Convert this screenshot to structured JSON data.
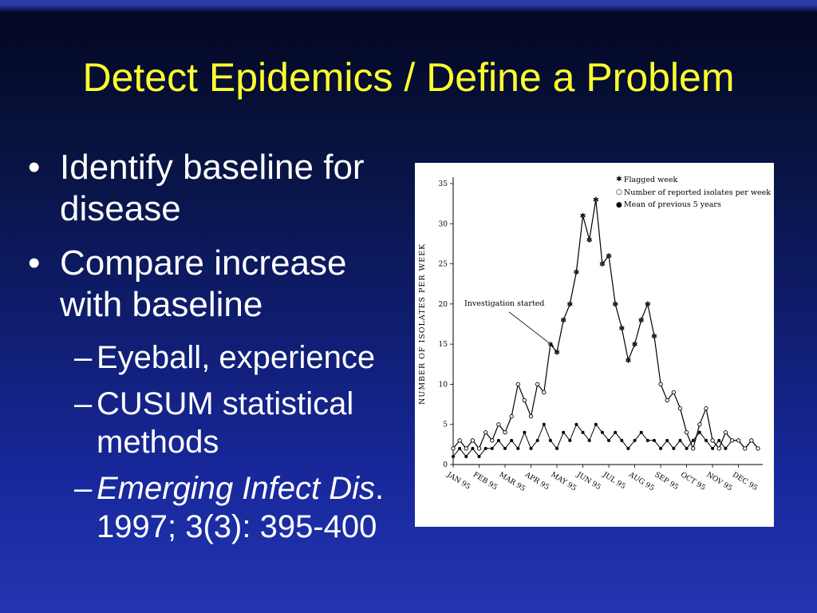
{
  "slide": {
    "title": "Detect Epidemics / Define a Problem",
    "title_color": "#ffff2e",
    "text_color": "#ffffff",
    "background_top": "#040824",
    "background_bottom": "#2336b0"
  },
  "content": {
    "bullets": [
      {
        "marker": "•",
        "text": "Identify baseline for disease"
      },
      {
        "marker": "•",
        "text": "Compare increase with baseline"
      },
      {
        "marker": "–",
        "text": "Eyeball, experience"
      },
      {
        "marker": "–",
        "text": "CUSUM statistical methods"
      },
      {
        "marker": "–",
        "italic": "Emerging Infect Dis",
        "text": ". 1997; 3(3): 395-400"
      }
    ]
  },
  "chart_data": {
    "type": "line",
    "title": "",
    "xlabel": "",
    "ylabel": "NUMBER OF ISOLATES PER WEEK",
    "ylim": [
      0,
      35
    ],
    "yticks": [
      0,
      5,
      10,
      15,
      20,
      25,
      30,
      35
    ],
    "x_tick_labels": [
      "JAN 95",
      "FEB 95",
      "MAR 95",
      "APR 95",
      "MAY 95",
      "JUN 95",
      "JUL 95",
      "AUG 95",
      "SEP 95",
      "OCT 95",
      "NOV 95",
      "DEC 95"
    ],
    "weeks_per_month": 4,
    "grid": false,
    "legend_position": "top-right",
    "annotation": "Investigation started",
    "legend": [
      {
        "glyph": "✱",
        "label": "Flagged week"
      },
      {
        "glyph": "○",
        "label": "Number of reported isolates per week"
      },
      {
        "glyph": "●",
        "label": "Mean of previous 5 years"
      }
    ],
    "series": [
      {
        "name": "Number of reported isolates per week",
        "marker": "open-circle",
        "values": [
          2,
          3,
          2,
          3,
          2,
          4,
          3,
          5,
          4,
          6,
          10,
          8,
          6,
          10,
          9,
          15,
          14,
          18,
          20,
          24,
          31,
          28,
          33,
          25,
          26,
          20,
          17,
          13,
          15,
          18,
          20,
          16,
          10,
          8,
          9,
          7,
          4,
          2,
          5,
          7,
          3,
          2,
          4,
          3,
          3,
          2,
          3,
          2
        ]
      },
      {
        "name": "Mean of previous 5 years",
        "marker": "filled-circle",
        "values": [
          1,
          2,
          1,
          2,
          1,
          2,
          2,
          3,
          2,
          3,
          2,
          4,
          2,
          3,
          5,
          3,
          2,
          4,
          3,
          5,
          4,
          3,
          5,
          4,
          3,
          4,
          3,
          2,
          3,
          4,
          3,
          3,
          2,
          3,
          2,
          3,
          2,
          3,
          4,
          3,
          2,
          3,
          2,
          3,
          3,
          2,
          3,
          2
        ]
      }
    ],
    "flagged_weeks": [
      16,
      17,
      18,
      19,
      20,
      21,
      22,
      23,
      24,
      25,
      26,
      27,
      28,
      29,
      30,
      31
    ]
  }
}
